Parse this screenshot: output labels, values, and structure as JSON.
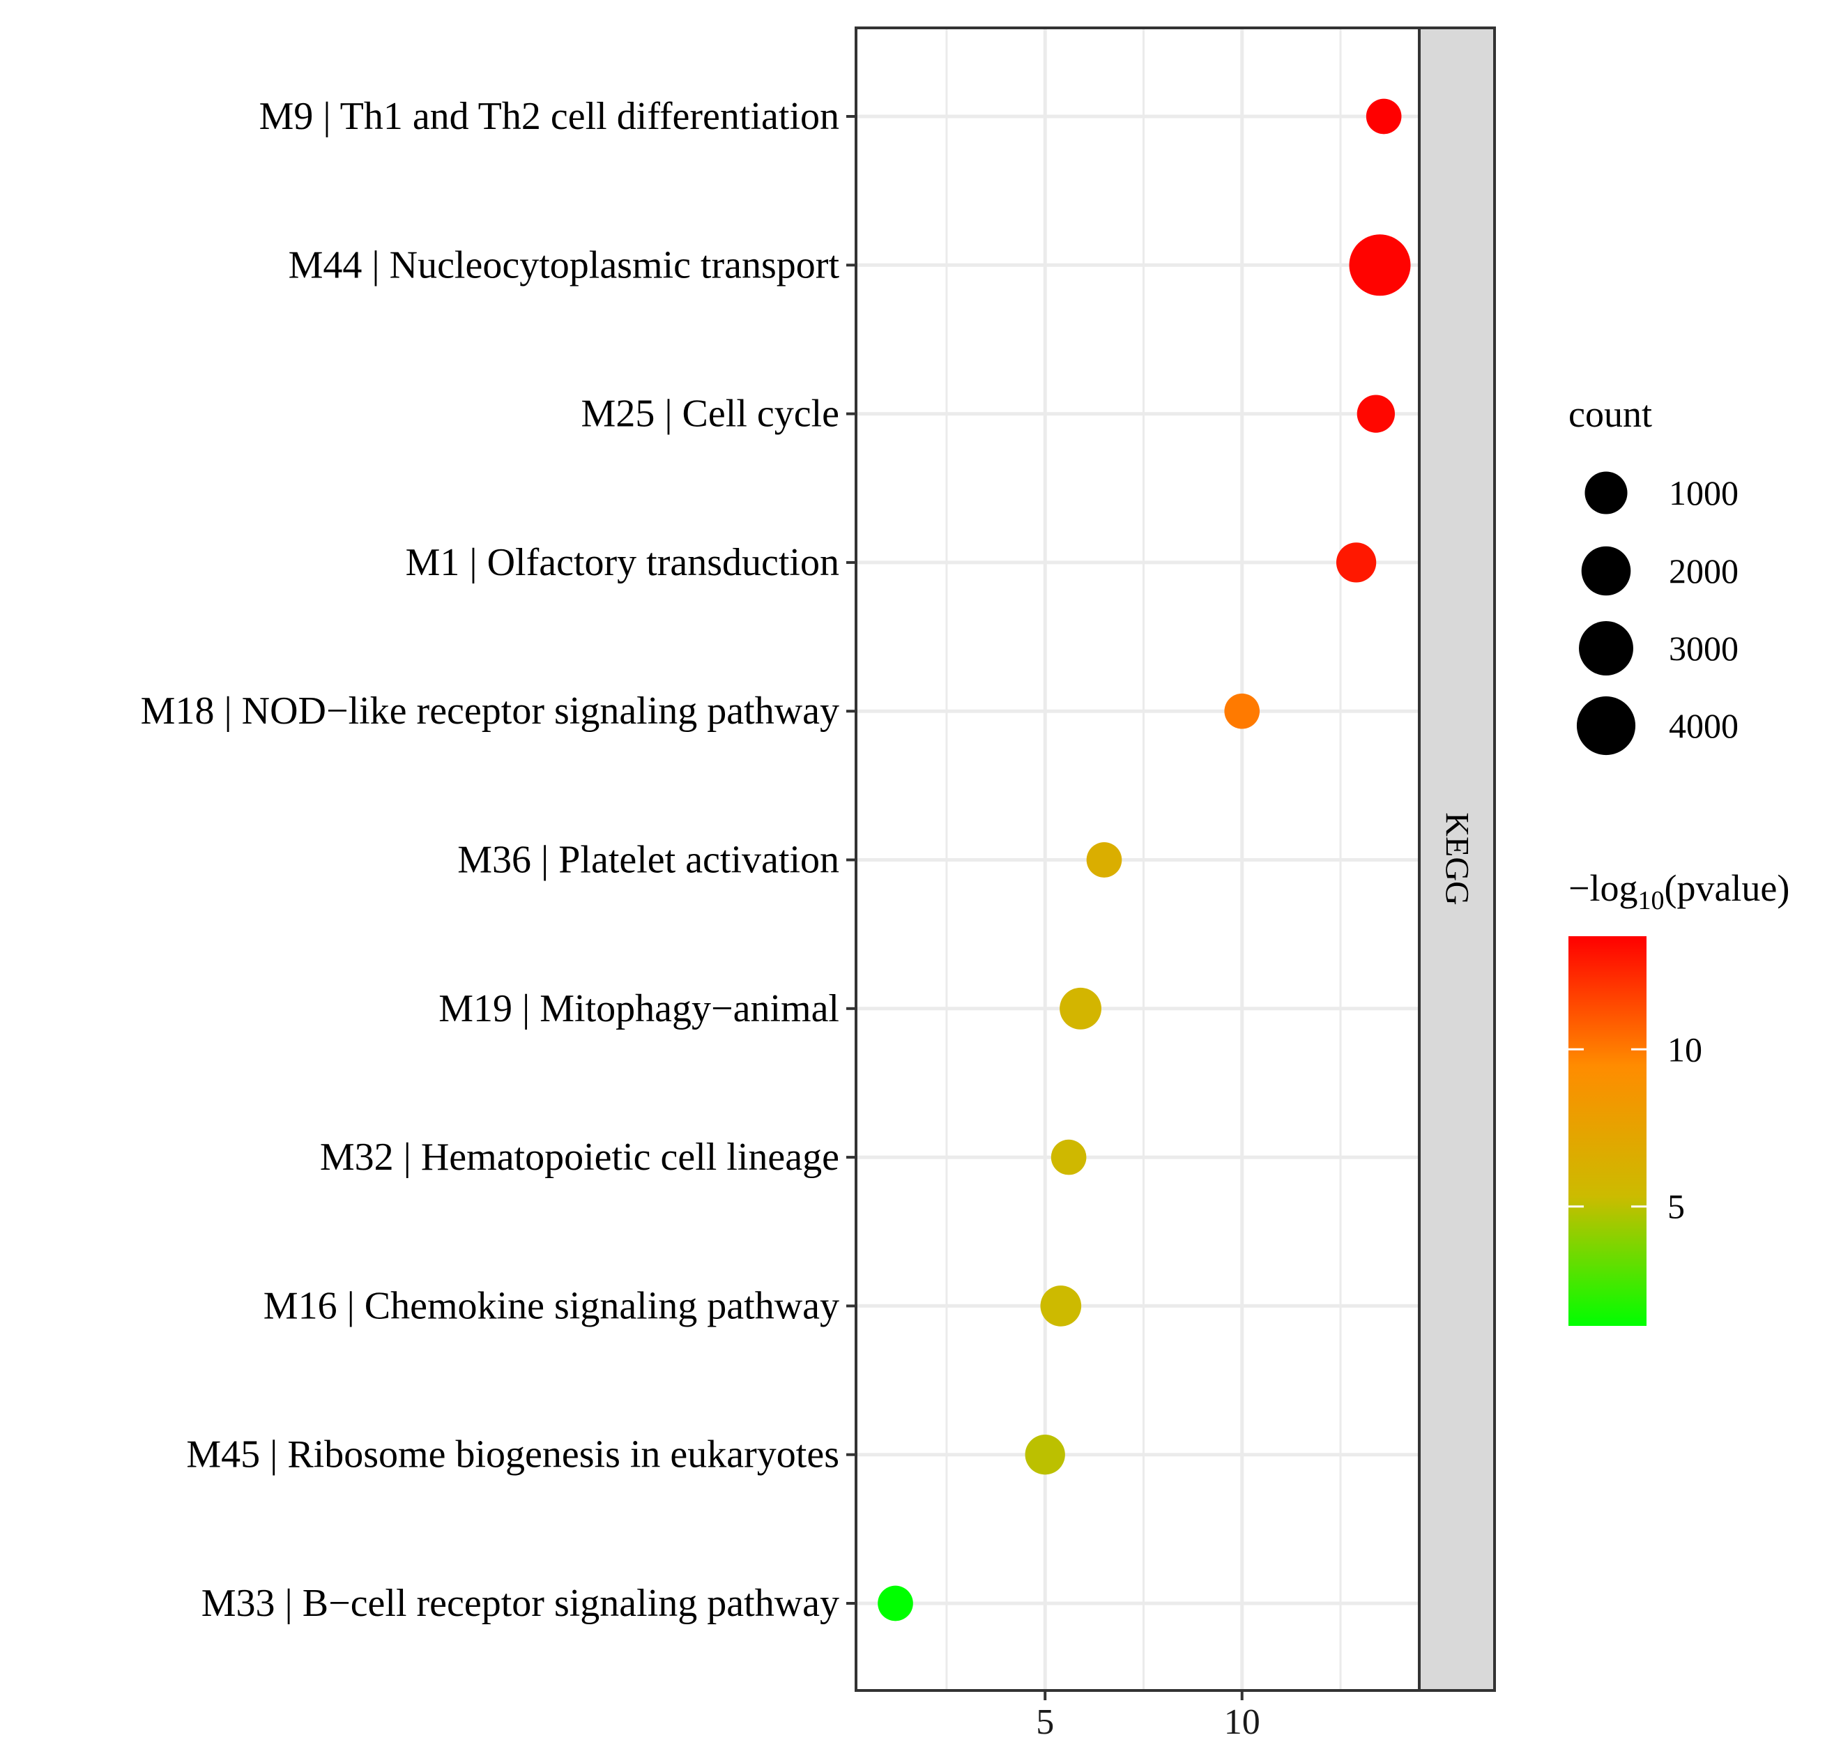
{
  "chart_data": {
    "type": "scatter",
    "title": "",
    "xlabel": "",
    "ylabel": "",
    "facet_label": "KEGG",
    "xlim": [
      0.2,
      14.5
    ],
    "x_ticks": [
      5,
      10
    ],
    "x_tick_labels": [
      "5",
      "10"
    ],
    "x_minor_gridlines": [
      2.5,
      7.5,
      12.5
    ],
    "categories": [
      "M9 | Th1 and Th2 cell differentiation",
      "M44 | Nucleocytoplasmic transport",
      "M25 | Cell cycle",
      "M1 | Olfactory transduction",
      "M18 | NOD−like receptor signaling pathway",
      "M36 | Platelet activation",
      "M19 | Mitophagy−animal",
      "M32 | Hematopoietic cell lineage",
      "M16 | Chemokine signaling pathway",
      "M45 | Ribosome biogenesis in eukaryotes",
      "M33 | B−cell receptor signaling pathway"
    ],
    "points": [
      {
        "x": 13.6,
        "count": 300,
        "neg_log10_p": 13.6
      },
      {
        "x": 13.5,
        "count": 4700,
        "neg_log10_p": 13.5
      },
      {
        "x": 13.4,
        "count": 500,
        "neg_log10_p": 13.4
      },
      {
        "x": 12.9,
        "count": 700,
        "neg_log10_p": 12.9
      },
      {
        "x": 10.0,
        "count": 300,
        "neg_log10_p": 10.0
      },
      {
        "x": 6.5,
        "count": 300,
        "neg_log10_p": 6.5
      },
      {
        "x": 5.9,
        "count": 900,
        "neg_log10_p": 5.9
      },
      {
        "x": 5.6,
        "count": 300,
        "neg_log10_p": 5.6
      },
      {
        "x": 5.4,
        "count": 800,
        "neg_log10_p": 5.4
      },
      {
        "x": 5.0,
        "count": 700,
        "neg_log10_p": 5.0
      },
      {
        "x": 1.2,
        "count": 300,
        "neg_log10_p": 1.2
      }
    ],
    "size_legend": {
      "title": "count",
      "breaks": [
        1000,
        2000,
        3000,
        4000
      ],
      "labels": [
        "1000",
        "2000",
        "3000",
        "4000"
      ]
    },
    "color_legend": {
      "title_prefix": "−log",
      "title_sub": "10",
      "title_suffix": "(pvalue)",
      "range": [
        1.2,
        13.6
      ],
      "breaks": [
        5,
        10
      ],
      "labels": [
        "5",
        "10"
      ],
      "gradient": [
        "#00ff00",
        "#ccbb00",
        "#ff8c00",
        "#ff0000"
      ]
    },
    "colors": {
      "panel_border": "#333333",
      "grid": "#ebebeb",
      "strip_fill": "#d9d9d9",
      "text": "#000000"
    }
  }
}
